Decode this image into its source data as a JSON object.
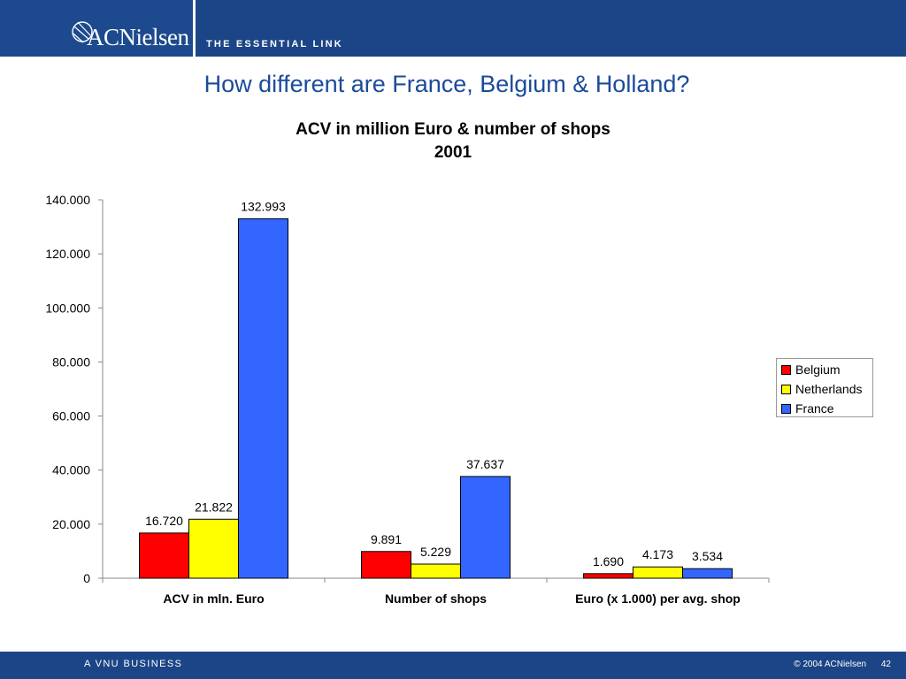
{
  "header": {
    "logo_text": "ACNielsen",
    "tagline": "THE ESSENTIAL LINK",
    "background_color": "#1b4586"
  },
  "slide": {
    "title": "How different are France, Belgium & Holland?"
  },
  "footer": {
    "business": "A VNU BUSINESS",
    "copyright": "© 2004 ACNielsen",
    "page_number": "42"
  },
  "chart_data": {
    "type": "bar",
    "title": "ACV in million Euro & number of shops",
    "subtitle": "2001",
    "xlabel": "",
    "ylabel": "",
    "ylim": [
      0,
      140000
    ],
    "yticks": [
      0,
      20000,
      40000,
      60000,
      80000,
      100000,
      120000,
      140000
    ],
    "ytick_labels": [
      "0",
      "20.000",
      "40.000",
      "60.000",
      "80.000",
      "100.000",
      "120.000",
      "140.000"
    ],
    "categories": [
      "ACV in mln. Euro",
      "Number of shops",
      "Euro (x 1.000) per avg. shop"
    ],
    "series": [
      {
        "name": "Belgium",
        "color": "#ff0000",
        "values": [
          16720,
          9891,
          1690
        ],
        "labels": [
          "16.720",
          "9.891",
          "1.690"
        ]
      },
      {
        "name": "Netherlands",
        "color": "#ffff00",
        "values": [
          21822,
          5229,
          4173
        ],
        "labels": [
          "21.822",
          "5.229",
          "4.173"
        ]
      },
      {
        "name": "France",
        "color": "#3366ff",
        "values": [
          132993,
          37637,
          3534
        ],
        "labels": [
          "132.993",
          "37.637",
          "3.534"
        ]
      }
    ],
    "legend_position": "right",
    "grid": false
  }
}
